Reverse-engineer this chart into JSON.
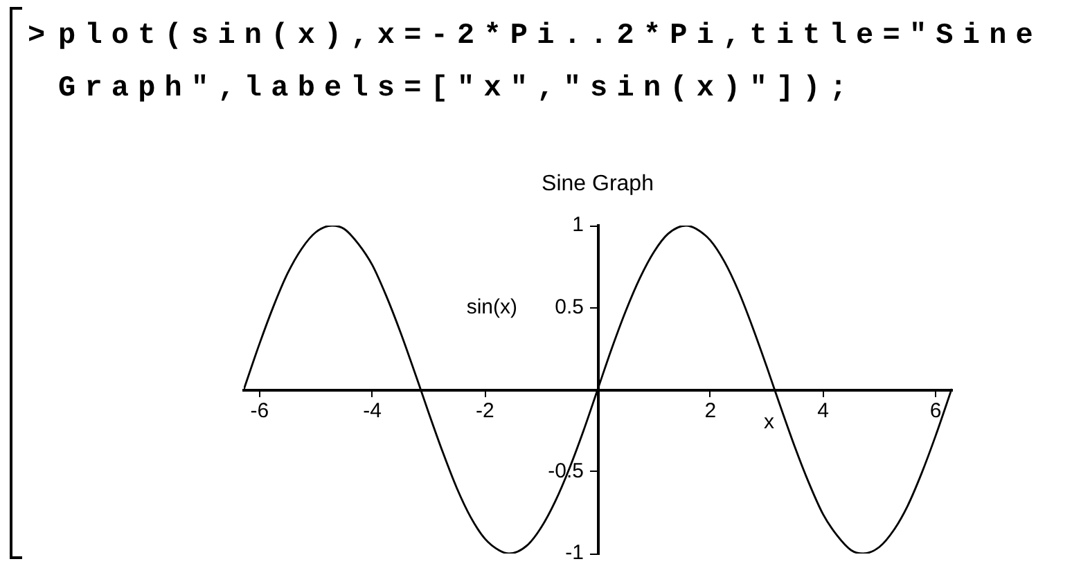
{
  "chart_data": {
    "type": "line",
    "title": "Sine Graph",
    "xlabel": "x",
    "ylabel": "sin(x)",
    "annotations": [
      ">",
      "plot(sin(x),x=-2*Pi..2*Pi,title=\"Sine Graph\",labels=[\"x\",\"sin(x)\"]);"
    ],
    "x": [
      -6.28,
      -6,
      -5.75,
      -5.5,
      -5.25,
      -5,
      -4.71,
      -4.5,
      -4.25,
      -4,
      -3.75,
      -3.5,
      -3.14,
      -3,
      -2.75,
      -2.5,
      -2.25,
      -2,
      -1.75,
      -1.57,
      -1.25,
      -1,
      -0.75,
      -0.5,
      -0.25,
      0,
      0.25,
      0.5,
      0.75,
      1,
      1.25,
      1.57,
      1.75,
      2,
      2.25,
      2.5,
      2.75,
      3,
      3.14,
      3.5,
      3.75,
      4,
      4.25,
      4.5,
      4.71,
      5,
      5.25,
      5.5,
      5.75,
      6,
      6.28
    ],
    "series": [
      {
        "color": "#000000",
        "values": [
          0,
          0.28,
          0.51,
          0.71,
          0.86,
          0.96,
          1,
          0.98,
          0.89,
          0.76,
          0.57,
          0.35,
          0,
          -0.14,
          -0.38,
          -0.6,
          -0.78,
          -0.91,
          -0.98,
          -1,
          -0.95,
          -0.84,
          -0.68,
          -0.48,
          -0.25,
          0,
          0.25,
          0.48,
          0.68,
          0.84,
          0.95,
          1,
          0.98,
          0.91,
          0.78,
          0.6,
          0.38,
          0.14,
          0,
          -0.35,
          -0.57,
          -0.76,
          -0.89,
          -0.98,
          -1,
          -0.96,
          -0.86,
          -0.71,
          -0.51,
          -0.28,
          0
        ]
      }
    ],
    "xlim": [
      -6.28,
      6.28
    ],
    "ylim": [
      -1,
      1
    ],
    "xticks": [
      -6,
      -4,
      -2,
      2,
      4,
      6
    ],
    "yticks": [
      -1,
      -0.5,
      0.5,
      1
    ],
    "grid": false
  }
}
